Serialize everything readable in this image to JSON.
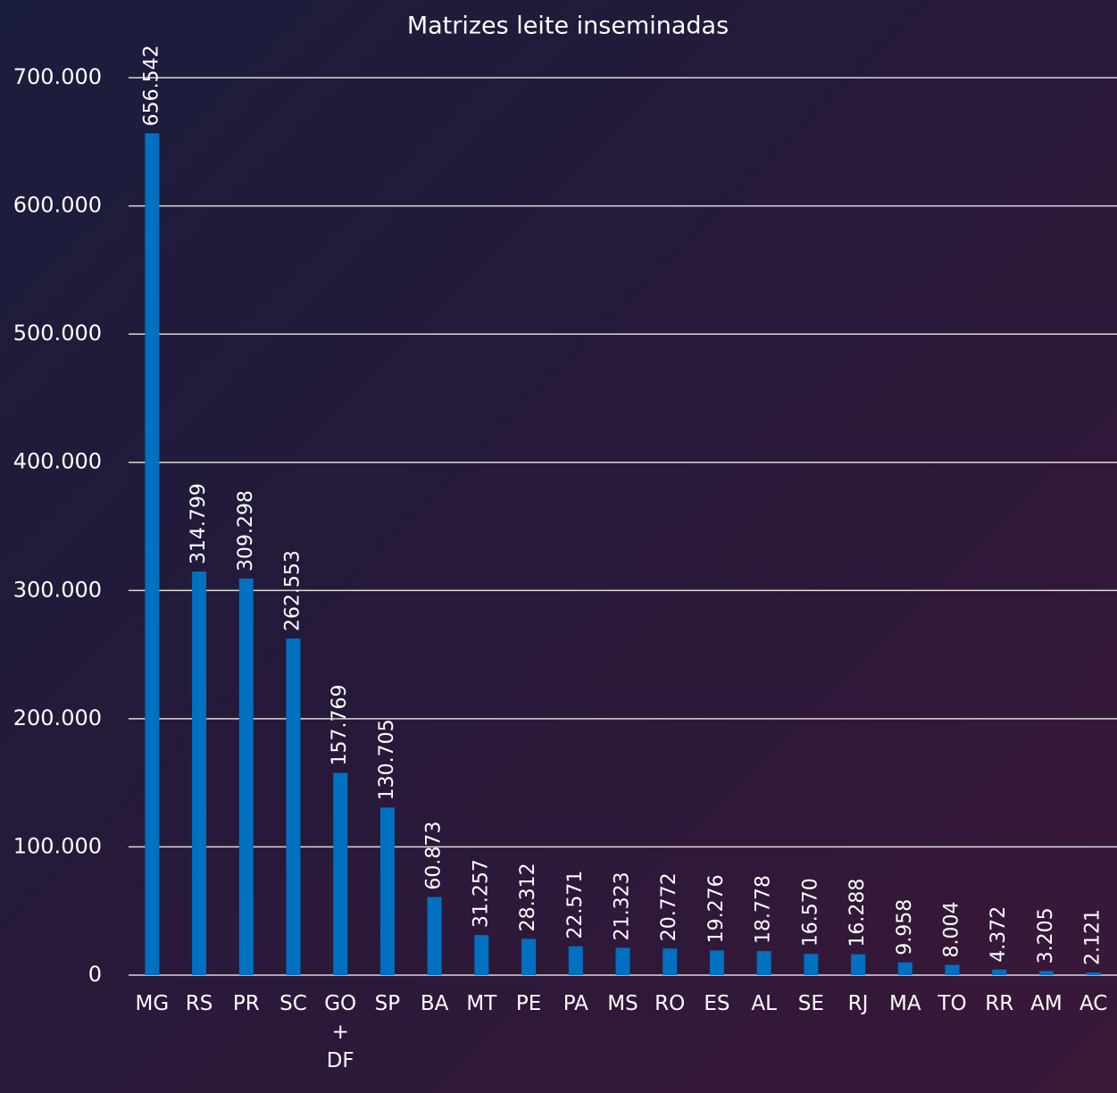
{
  "chart_data": {
    "type": "bar",
    "title": "Matrizes leite inseminadas",
    "categories": [
      "MG",
      "RS",
      "PR",
      "SC",
      "GO + DF",
      "SP",
      "BA",
      "MT",
      "PE",
      "PA",
      "MS",
      "RO",
      "ES",
      "AL",
      "SE",
      "RJ",
      "MA",
      "TO",
      "RR",
      "AM",
      "AC"
    ],
    "values": [
      656542,
      314799,
      309298,
      262553,
      157769,
      130705,
      60873,
      31257,
      28312,
      22571,
      21323,
      20772,
      19276,
      18778,
      16570,
      16288,
      9958,
      8004,
      4372,
      3205,
      2121
    ],
    "value_labels": [
      "656.542",
      "314.799",
      "309.298",
      "262.553",
      "157.769",
      "130.705",
      "60.873",
      "31.257",
      "28.312",
      "22.571",
      "21.323",
      "20.772",
      "19.276",
      "18.778",
      "16.570",
      "16.288",
      "9.958",
      "8.004",
      "4.372",
      "3.205",
      "2.121"
    ],
    "color": "#0070c0",
    "ylim": [
      0,
      700000
    ],
    "yticks": [
      0,
      {
        "value": 100000,
        "label": "100.000"
      },
      {
        "value": 200000,
        "label": "200.000"
      },
      {
        "value": 300000,
        "label": "300.000"
      },
      {
        "value": 400000,
        "label": "400.000"
      },
      {
        "value": 500000,
        "label": "500.000"
      },
      {
        "value": 600000,
        "label": "600.000"
      },
      {
        "value": 700000,
        "label": "700.000"
      }
    ],
    "grid": true
  }
}
